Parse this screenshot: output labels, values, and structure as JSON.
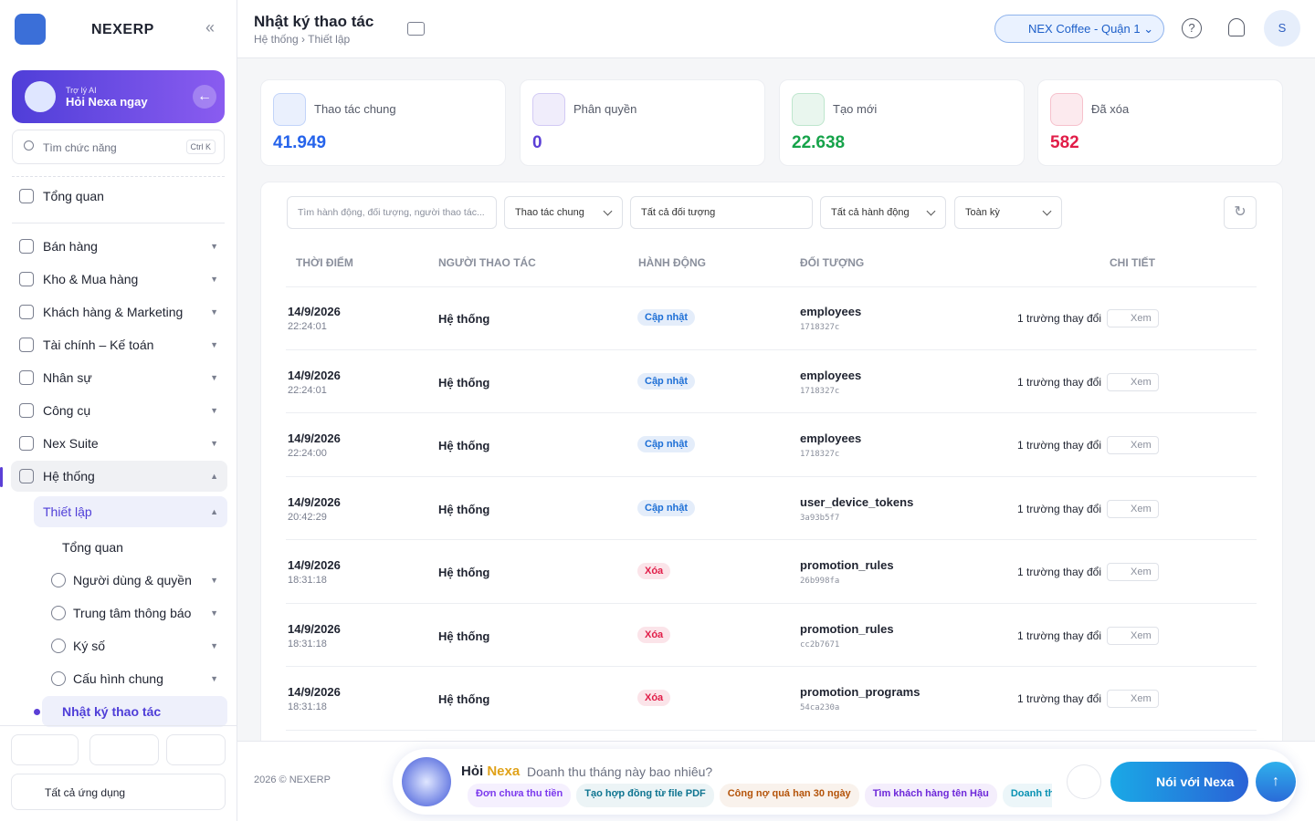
{
  "sidebar": {
    "logo": "NEXERP",
    "ai": {
      "label": "Trợ lý AI",
      "title": "Hỏi Nexa ngay"
    },
    "search": {
      "placeholder": "Tìm chức năng",
      "shortcut": "Ctrl K"
    },
    "menu": [
      "Tổng quan",
      "Bán hàng",
      "Kho & Mua hàng",
      "Khách hàng & Marketing",
      "Tài chính – Kế toán",
      "Nhân sự",
      "Công cụ",
      "Nex Suite",
      "Hệ thống"
    ],
    "submenu": {
      "title": "Thiết lập",
      "items": [
        "Tổng quan",
        "Người dùng & quyền",
        "Trung tâm thông báo",
        "Ký số",
        "Cấu hình chung",
        "Nhật ký thao tác"
      ]
    },
    "all_apps": "Tất cả ứng dụng"
  },
  "header": {
    "title": "Nhật ký thao tác",
    "breadcrumb": "Hệ thống › Thiết lập",
    "store": "NEX Coffee - Quận 1",
    "avatar": "S"
  },
  "stats": [
    {
      "label": "Thao tác chung",
      "value": "41.949",
      "color": "#2563eb"
    },
    {
      "label": "Phân quyền",
      "value": "0",
      "color": "#5b3fd6"
    },
    {
      "label": "Tạo mới",
      "value": "22.638",
      "color": "#16a34a"
    },
    {
      "label": "Đã xóa",
      "value": "582",
      "color": "#e11d48"
    }
  ],
  "filters": {
    "search": "Tìm hành động, đối tượng, người thao tác...",
    "selects": [
      "Thao tác chung",
      "Tất cả đối tượng",
      "Tất cả hành động",
      "Toàn kỳ"
    ]
  },
  "table": {
    "columns": [
      "THỜI ĐIỂM",
      "NGƯỜI THAO TÁC",
      "HÀNH ĐỘNG",
      "ĐỐI TƯỢNG",
      "CHI TIẾT"
    ],
    "rows": [
      {
        "date": "14/9/2026",
        "time": "22:24:01",
        "user": "Hệ thống",
        "action": "Cập nhật",
        "action_color": "#1d6fd6",
        "object": "employees",
        "id": "1718327c",
        "detail": "1 trường thay đổi",
        "view": "Xem"
      },
      {
        "date": "14/9/2026",
        "time": "22:24:01",
        "user": "Hệ thống",
        "action": "Cập nhật",
        "action_color": "#1d6fd6",
        "object": "employees",
        "id": "1718327c",
        "detail": "1 trường thay đổi",
        "view": "Xem"
      },
      {
        "date": "14/9/2026",
        "time": "22:24:00",
        "user": "Hệ thống",
        "action": "Cập nhật",
        "action_color": "#1d6fd6",
        "object": "employees",
        "id": "1718327c",
        "detail": "1 trường thay đổi",
        "view": "Xem"
      },
      {
        "date": "14/9/2026",
        "time": "20:42:29",
        "user": "Hệ thống",
        "action": "Cập nhật",
        "action_color": "#1d6fd6",
        "object": "user_device_tokens",
        "id": "3a93b5f7",
        "detail": "1 trường thay đổi",
        "view": "Xem"
      },
      {
        "date": "14/9/2026",
        "time": "18:31:18",
        "user": "Hệ thống",
        "action": "Xóa",
        "action_color": "#e11d48",
        "object": "promotion_rules",
        "id": "26b998fa",
        "detail": "1 trường thay đổi",
        "view": "Xem"
      },
      {
        "date": "14/9/2026",
        "time": "18:31:18",
        "user": "Hệ thống",
        "action": "Xóa",
        "action_color": "#e11d48",
        "object": "promotion_rules",
        "id": "cc2b7671",
        "detail": "1 trường thay đổi",
        "view": "Xem"
      },
      {
        "date": "14/9/2026",
        "time": "18:31:18",
        "user": "Hệ thống",
        "action": "Xóa",
        "action_color": "#e11d48",
        "object": "promotion_programs",
        "id": "54ca230a",
        "detail": "1 trường thay đổi",
        "view": "Xem"
      }
    ]
  },
  "footer": {
    "copyright": "2026 © NEXERP",
    "ask": {
      "prefix": "Hỏi",
      "name": "Nexa",
      "placeholder": "Doanh thu tháng này bao nhiêu?"
    },
    "chips": [
      "Đơn chưa thu tiền",
      "Tạo hợp đồng từ file PDF",
      "Công nợ quá hạn 30 ngày",
      "Tìm khách hàng tên Hậu",
      "Doanh thu"
    ],
    "voice": "Nói với Nexa"
  }
}
